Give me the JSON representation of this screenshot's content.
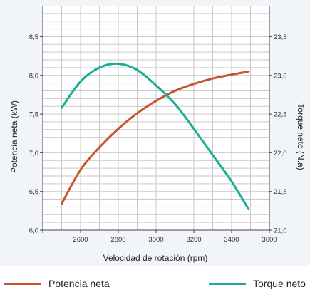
{
  "chart_data": {
    "type": "line",
    "xlabel": "Velocidad de rotación (rpm)",
    "ylabel_left": "Potencia neta (kW)",
    "ylabel_right": "Torque neto (N.a)",
    "xlim": [
      2400,
      3600
    ],
    "ylim_left": [
      6.0,
      8.9
    ],
    "ylim_right": [
      21.0,
      23.9
    ],
    "x_ticks": [
      "2600",
      "2800",
      "3000",
      "3200",
      "3400",
      "3600"
    ],
    "y_left_ticks": [
      "6,0",
      "6,5",
      "7,0",
      "7,5",
      "8,0",
      "8,5"
    ],
    "y_right_ticks": [
      "21,0",
      "21,5",
      "22,0",
      "22,5",
      "23,0",
      "23,5"
    ],
    "grid": true,
    "legend_position": "bottom",
    "series": [
      {
        "name": "Potencia neta",
        "axis": "left",
        "color": "#c8552a",
        "x": [
          2500,
          2600,
          2700,
          2800,
          2900,
          3000,
          3100,
          3200,
          3300,
          3400,
          3490
        ],
        "y": [
          6.34,
          6.78,
          7.07,
          7.31,
          7.51,
          7.67,
          7.8,
          7.89,
          7.96,
          8.01,
          8.05
        ]
      },
      {
        "name": "Torque neto",
        "axis": "right",
        "color": "#1aae94",
        "x": [
          2500,
          2600,
          2700,
          2800,
          2900,
          3000,
          3100,
          3200,
          3300,
          3400,
          3490
        ],
        "y": [
          22.58,
          22.92,
          23.1,
          23.15,
          23.07,
          22.87,
          22.63,
          22.31,
          21.97,
          21.63,
          21.27
        ]
      }
    ]
  }
}
